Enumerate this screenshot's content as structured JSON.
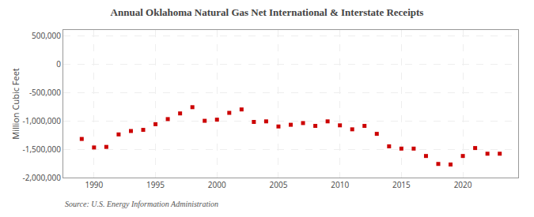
{
  "chart_data": {
    "type": "scatter",
    "title": "Annual Oklahoma Natural Gas Net International & Interstate Receipts",
    "ylabel": "Million Cubic Feet",
    "annotations": [
      "Source: U.S. Energy Information Administration"
    ],
    "color": "#cc0000",
    "marker": "square",
    "grid": true,
    "x": [
      1989,
      1990,
      1991,
      1992,
      1993,
      1994,
      1995,
      1996,
      1997,
      1998,
      1999,
      2000,
      2001,
      2002,
      2003,
      2004,
      2005,
      2006,
      2007,
      2008,
      2009,
      2010,
      2011,
      2012,
      2013,
      2014,
      2015,
      2016,
      2017,
      2018,
      2019,
      2020,
      2021,
      2022,
      2023
    ],
    "values": [
      -1320000,
      -1470000,
      -1460000,
      -1240000,
      -1180000,
      -1160000,
      -1060000,
      -970000,
      -870000,
      -760000,
      -1000000,
      -980000,
      -860000,
      -800000,
      -1020000,
      -1010000,
      -1100000,
      -1070000,
      -1040000,
      -1090000,
      -1010000,
      -1080000,
      -1150000,
      -1090000,
      -1230000,
      -1450000,
      -1490000,
      -1490000,
      -1620000,
      -1760000,
      -1770000,
      -1620000,
      -1480000,
      -1580000,
      -1580000
    ],
    "xlim": [
      1987.5,
      2024.5
    ],
    "xticks": [
      1990,
      1995,
      2000,
      2005,
      2010,
      2015,
      2020
    ],
    "ylim": [
      -2000000,
      600000
    ],
    "yticks": [
      {
        "value": 500000,
        "label": "500,000"
      },
      0,
      {
        "value": -500000,
        "label": "-500,000"
      },
      {
        "value": -1000000,
        "label": "-1,000,000"
      },
      {
        "value": -1500000,
        "label": "-1,500,000"
      },
      {
        "value": -2000000,
        "label": "-2,000,000"
      }
    ]
  }
}
